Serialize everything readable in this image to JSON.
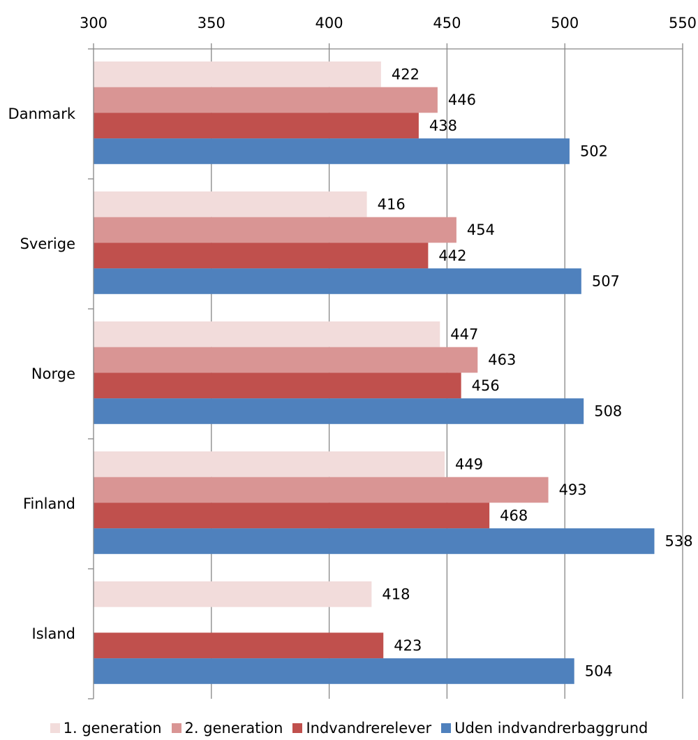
{
  "chart_data": {
    "type": "bar",
    "orientation": "horizontal",
    "categories": [
      "Danmark",
      "Sverige",
      "Norge",
      "Finland",
      "Island"
    ],
    "series": [
      {
        "name": "1. generation",
        "color": "#f2dcdb",
        "values": [
          422,
          416,
          447,
          449,
          418
        ]
      },
      {
        "name": "2. generation",
        "color": "#d99594",
        "values": [
          446,
          454,
          463,
          493,
          null
        ]
      },
      {
        "name": "Indvandrerelever",
        "color": "#c0504d",
        "values": [
          438,
          442,
          456,
          468,
          423
        ]
      },
      {
        "name": "Uden indvandrerbaggrund",
        "color": "#4f81bd",
        "values": [
          502,
          507,
          508,
          538,
          504
        ]
      }
    ],
    "xlim": [
      300,
      550
    ],
    "x_ticks": [
      300,
      350,
      400,
      450,
      500,
      550
    ],
    "x_tick_labels": [
      "300",
      "350",
      "400",
      "450",
      "500",
      "550"
    ],
    "axis_position": "top",
    "grid": true,
    "data_labels": true,
    "legend_position": "bottom"
  }
}
